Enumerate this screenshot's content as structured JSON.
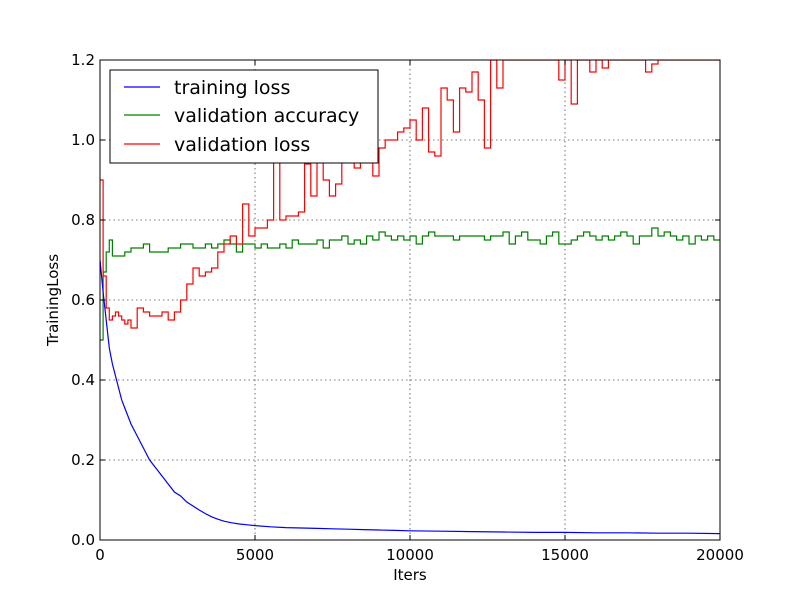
{
  "chart_data": {
    "type": "line",
    "title": "",
    "xlabel": "Iters",
    "ylabel": "TrainingLoss",
    "xlim": [
      0,
      20000
    ],
    "ylim": [
      0.0,
      1.2
    ],
    "x_ticks": [
      "0",
      "5000",
      "10000",
      "15000",
      "20000"
    ],
    "y_ticks": [
      "0.0",
      "0.2",
      "0.4",
      "0.6",
      "0.8",
      "1.0",
      "1.2"
    ],
    "grid": true,
    "legend_position": "top-left",
    "series": [
      {
        "name": "training loss",
        "color": "#0000ff",
        "step": false,
        "x": [
          0,
          100,
          200,
          300,
          400,
          500,
          600,
          700,
          800,
          900,
          1000,
          1200,
          1400,
          1600,
          1800,
          2000,
          2200,
          2400,
          2600,
          2800,
          3000,
          3200,
          3400,
          3600,
          3800,
          4000,
          4250,
          4500,
          4750,
          5000,
          5500,
          6000,
          6500,
          7000,
          7500,
          8000,
          8500,
          9000,
          9500,
          10000,
          11000,
          12000,
          13000,
          14000,
          15000,
          16000,
          17000,
          18000,
          19000,
          20000
        ],
        "y": [
          0.7,
          0.62,
          0.55,
          0.48,
          0.44,
          0.41,
          0.38,
          0.35,
          0.33,
          0.31,
          0.29,
          0.26,
          0.23,
          0.2,
          0.18,
          0.16,
          0.14,
          0.12,
          0.11,
          0.095,
          0.085,
          0.075,
          0.066,
          0.058,
          0.052,
          0.047,
          0.043,
          0.04,
          0.038,
          0.036,
          0.033,
          0.031,
          0.03,
          0.029,
          0.028,
          0.027,
          0.026,
          0.025,
          0.024,
          0.023,
          0.022,
          0.021,
          0.02,
          0.019,
          0.019,
          0.018,
          0.018,
          0.017,
          0.017,
          0.016
        ]
      },
      {
        "name": "validation accuracy",
        "color": "#008000",
        "step": true,
        "x": [
          0,
          100,
          200,
          300,
          400,
          500,
          600,
          700,
          800,
          900,
          1000,
          1200,
          1400,
          1600,
          1800,
          2000,
          2200,
          2400,
          2600,
          2800,
          3000,
          3200,
          3400,
          3600,
          3800,
          4000,
          4200,
          4400,
          4600,
          4800,
          5000,
          5200,
          5400,
          5600,
          5800,
          6000,
          6200,
          6400,
          6600,
          6800,
          7000,
          7200,
          7400,
          7600,
          7800,
          8000,
          8200,
          8400,
          8600,
          8800,
          9000,
          9200,
          9400,
          9600,
          9800,
          10000,
          10200,
          10400,
          10600,
          10800,
          11000,
          11200,
          11400,
          11600,
          11800,
          12000,
          12200,
          12400,
          12600,
          12800,
          13000,
          13200,
          13400,
          13600,
          13800,
          14000,
          14200,
          14400,
          14600,
          14800,
          15000,
          15200,
          15400,
          15600,
          15800,
          16000,
          16200,
          16400,
          16600,
          16800,
          17000,
          17200,
          17400,
          17600,
          17800,
          18000,
          18200,
          18400,
          18600,
          18800,
          19000,
          19200,
          19400,
          19600,
          19800,
          20000
        ],
        "y": [
          0.5,
          0.67,
          0.72,
          0.75,
          0.71,
          0.71,
          0.71,
          0.71,
          0.72,
          0.72,
          0.73,
          0.73,
          0.74,
          0.72,
          0.72,
          0.72,
          0.73,
          0.73,
          0.74,
          0.74,
          0.73,
          0.73,
          0.74,
          0.73,
          0.74,
          0.75,
          0.74,
          0.72,
          0.74,
          0.74,
          0.73,
          0.74,
          0.73,
          0.73,
          0.74,
          0.73,
          0.75,
          0.74,
          0.74,
          0.74,
          0.75,
          0.73,
          0.75,
          0.75,
          0.76,
          0.74,
          0.75,
          0.74,
          0.76,
          0.75,
          0.77,
          0.76,
          0.75,
          0.76,
          0.75,
          0.76,
          0.74,
          0.76,
          0.77,
          0.76,
          0.76,
          0.76,
          0.75,
          0.76,
          0.76,
          0.76,
          0.76,
          0.75,
          0.76,
          0.76,
          0.77,
          0.74,
          0.76,
          0.77,
          0.75,
          0.75,
          0.74,
          0.76,
          0.77,
          0.74,
          0.74,
          0.75,
          0.76,
          0.77,
          0.76,
          0.75,
          0.76,
          0.75,
          0.76,
          0.77,
          0.76,
          0.74,
          0.76,
          0.76,
          0.78,
          0.76,
          0.77,
          0.76,
          0.75,
          0.76,
          0.74,
          0.76,
          0.75,
          0.76,
          0.75,
          0.75
        ]
      },
      {
        "name": "validation loss",
        "color": "#ff0000",
        "step": true,
        "x": [
          0,
          100,
          200,
          300,
          400,
          500,
          600,
          700,
          800,
          900,
          1000,
          1200,
          1400,
          1600,
          1800,
          2000,
          2200,
          2400,
          2600,
          2800,
          3000,
          3200,
          3400,
          3600,
          3800,
          4000,
          4200,
          4400,
          4600,
          4800,
          5000,
          5200,
          5400,
          5600,
          5800,
          6000,
          6200,
          6400,
          6600,
          6800,
          7000,
          7200,
          7400,
          7600,
          7800,
          8000,
          8200,
          8400,
          8600,
          8800,
          9000,
          9200,
          9400,
          9600,
          9800,
          10000,
          10200,
          10400,
          10600,
          10800,
          11000,
          11200,
          11400,
          11600,
          11800,
          12000,
          12200,
          12400,
          12600,
          12800,
          13000,
          13200,
          13400,
          13600,
          13800,
          14000,
          14200,
          14400,
          14600,
          14800,
          15000,
          15200,
          15400,
          15600,
          15800,
          16000,
          16200,
          16400,
          16600,
          16800,
          17000,
          17200,
          17400,
          17600,
          17800,
          18000,
          18200,
          18400,
          18600,
          18800,
          19000,
          19200,
          19400,
          19600,
          19800,
          20000
        ],
        "y": [
          0.9,
          0.66,
          0.58,
          0.55,
          0.56,
          0.57,
          0.56,
          0.55,
          0.54,
          0.55,
          0.53,
          0.58,
          0.57,
          0.56,
          0.56,
          0.57,
          0.55,
          0.57,
          0.6,
          0.64,
          0.68,
          0.66,
          0.67,
          0.68,
          0.72,
          0.74,
          0.76,
          0.74,
          0.84,
          0.76,
          0.78,
          0.78,
          0.8,
          0.97,
          0.8,
          0.81,
          0.81,
          0.82,
          0.94,
          0.86,
          0.95,
          0.9,
          0.86,
          0.89,
          1.0,
          1.0,
          0.93,
          0.95,
          1.0,
          0.91,
          0.98,
          1.0,
          1.0,
          1.02,
          1.03,
          1.05,
          1.0,
          1.08,
          0.97,
          0.96,
          1.13,
          1.1,
          1.02,
          1.13,
          1.12,
          1.17,
          1.1,
          0.98,
          1.2,
          1.13,
          1.2,
          1.2,
          1.2,
          1.2,
          1.2,
          1.2,
          1.2,
          1.2,
          1.2,
          1.15,
          1.2,
          1.09,
          1.2,
          1.2,
          1.17,
          1.2,
          1.18,
          1.2,
          1.2,
          1.2,
          1.2,
          1.2,
          1.2,
          1.17,
          1.19,
          1.2,
          1.2,
          1.2,
          1.2,
          1.2,
          1.2,
          1.2,
          1.2,
          1.2,
          1.2,
          1.2
        ]
      }
    ]
  }
}
